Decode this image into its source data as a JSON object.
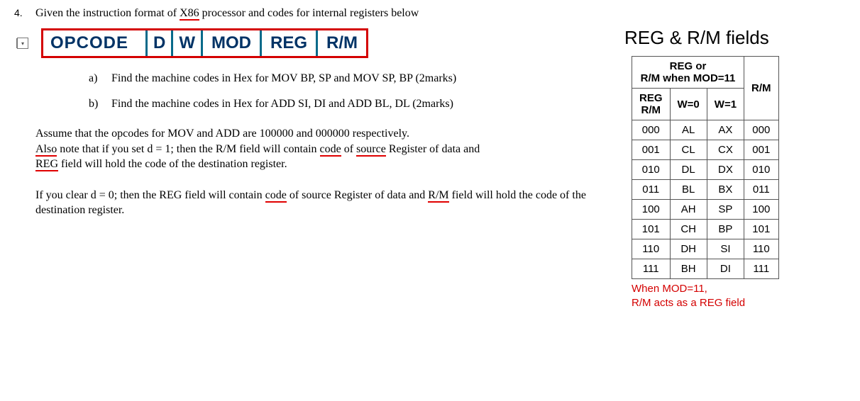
{
  "question_number": "4.",
  "question_text_pre": "Given the instruction format of ",
  "question_text_x86": "X86",
  "question_text_post": " processor and codes for internal registers below",
  "format_cells": {
    "opcode": "OPCODE",
    "d": "D",
    "w": "W",
    "mod": "MOD",
    "reg": "REG",
    "rm": "R/M"
  },
  "sub_a_marker": "a)",
  "sub_a_text": "Find the machine codes in Hex for MOV BP, SP and MOV SP, BP (2marks)",
  "sub_b_marker": "b)",
  "sub_b_text": "Find the machine codes in Hex for ADD SI, DI and ADD BL, DL (2marks)",
  "para1": {
    "t1": "Assume that the opcodes for MOV and ADD are 100000 and 000000 respectively.",
    "t2a": "Also",
    "t2b": " note that if you set d = 1; then the R/M field will contain ",
    "t2c": "code",
    "t2d": " of ",
    "t2e": "source",
    "t2f": " Register of data and ",
    "t3a": "REG",
    "t3b": " field will hold the code of the destination register."
  },
  "para2": {
    "t1a": "If you clear d = 0; then the REG field will contain ",
    "t1b": "code",
    "t1c": " of source Register of data and ",
    "t1d": "R/M",
    "t1e": " field will hold the code of the destination register."
  },
  "right_title": "REG & R/M fields",
  "table": {
    "header_merged": "REG or\nR/M when MOD=11",
    "h_reg_rm_a": "REG",
    "h_reg_rm_b": "R/M",
    "h_w0": "W=0",
    "h_w1": "W=1",
    "h_rm": "R/M",
    "rows": [
      {
        "c0": "000",
        "c1": "AL",
        "c2": "AX",
        "c3": "000"
      },
      {
        "c0": "001",
        "c1": "CL",
        "c2": "CX",
        "c3": "001"
      },
      {
        "c0": "010",
        "c1": "DL",
        "c2": "DX",
        "c3": "010"
      },
      {
        "c0": "011",
        "c1": "BL",
        "c2": "BX",
        "c3": "011"
      },
      {
        "c0": "100",
        "c1": "AH",
        "c2": "SP",
        "c3": "100"
      },
      {
        "c0": "101",
        "c1": "CH",
        "c2": "BP",
        "c3": "101"
      },
      {
        "c0": "110",
        "c1": "DH",
        "c2": "SI",
        "c3": "110"
      },
      {
        "c0": "111",
        "c1": "BH",
        "c2": "DI",
        "c3": "111"
      }
    ]
  },
  "footnote_a": "When MOD=11,",
  "footnote_b": "R/M acts as a REG field"
}
